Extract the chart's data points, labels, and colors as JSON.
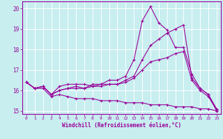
{
  "xlabel": "Windchill (Refroidissement éolien,°C)",
  "background_color": "#c8eef0",
  "grid_color": "#ffffff",
  "line_color": "#990099",
  "xlim": [
    -0.5,
    23.5
  ],
  "ylim": [
    14.85,
    20.35
  ],
  "yticks": [
    15,
    16,
    17,
    18,
    19,
    20
  ],
  "xticks": [
    0,
    1,
    2,
    3,
    4,
    5,
    6,
    7,
    8,
    9,
    10,
    11,
    12,
    13,
    14,
    15,
    16,
    17,
    18,
    19,
    20,
    21,
    22,
    23
  ],
  "lines": [
    {
      "x": [
        0,
        1,
        2,
        3,
        4,
        5,
        6,
        7,
        8,
        9,
        10,
        11,
        12,
        13,
        14,
        15,
        16,
        17,
        18,
        19,
        20,
        21,
        22,
        23
      ],
      "y": [
        16.4,
        16.1,
        16.2,
        15.8,
        16.2,
        16.3,
        16.3,
        16.3,
        16.2,
        16.3,
        16.5,
        16.5,
        16.7,
        17.5,
        19.4,
        20.1,
        19.3,
        18.95,
        18.1,
        18.1,
        16.8,
        16.1,
        15.8,
        15.0
      ]
    },
    {
      "x": [
        0,
        1,
        2,
        3,
        4,
        5,
        6,
        7,
        8,
        9,
        10,
        11,
        12,
        13,
        14,
        15,
        16,
        17,
        18,
        19,
        20,
        21,
        22,
        23
      ],
      "y": [
        16.4,
        16.1,
        16.2,
        15.8,
        16.0,
        16.1,
        16.2,
        16.1,
        16.3,
        16.3,
        16.3,
        16.3,
        16.5,
        16.7,
        17.5,
        18.2,
        18.5,
        18.8,
        19.0,
        19.2,
        16.6,
        16.1,
        15.8,
        15.1
      ]
    },
    {
      "x": [
        0,
        1,
        2,
        3,
        4,
        5,
        6,
        7,
        8,
        9,
        10,
        11,
        12,
        13,
        14,
        15,
        16,
        17,
        18,
        19,
        20,
        21,
        22,
        23
      ],
      "y": [
        16.4,
        16.1,
        16.2,
        15.8,
        16.0,
        16.1,
        16.1,
        16.1,
        16.2,
        16.2,
        16.3,
        16.3,
        16.4,
        16.6,
        17.0,
        17.4,
        17.5,
        17.6,
        17.8,
        17.9,
        16.5,
        16.0,
        15.7,
        15.05
      ]
    },
    {
      "x": [
        0,
        1,
        2,
        3,
        4,
        5,
        6,
        7,
        8,
        9,
        10,
        11,
        12,
        13,
        14,
        15,
        16,
        17,
        18,
        19,
        20,
        21,
        22,
        23
      ],
      "y": [
        16.4,
        16.1,
        16.1,
        15.7,
        15.8,
        15.7,
        15.6,
        15.6,
        15.6,
        15.5,
        15.5,
        15.5,
        15.4,
        15.4,
        15.4,
        15.3,
        15.3,
        15.3,
        15.2,
        15.2,
        15.2,
        15.1,
        15.1,
        15.0
      ]
    }
  ]
}
